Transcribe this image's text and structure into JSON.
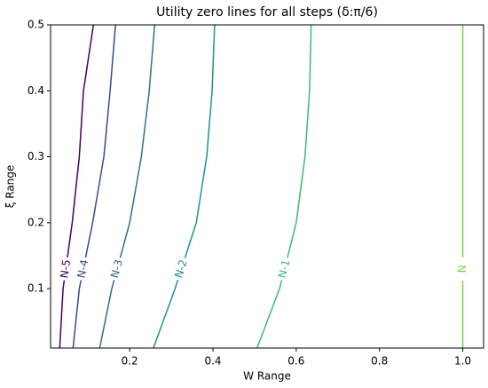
{
  "chart_data": {
    "type": "line",
    "title": "Utility zero lines for all steps (δ:π/6)",
    "x_label": "W Range",
    "y_label": "ξ Range",
    "xlim": [
      0.01,
      1.05
    ],
    "ylim": [
      0.01,
      0.5
    ],
    "xticks": [
      0.2,
      0.4,
      0.6,
      {
        "value": 0.8,
        "label": "0.8"
      },
      {
        "value": 1.0,
        "label": "1.0"
      }
    ],
    "yticks": [
      0.1,
      0.2,
      0.3,
      0.4,
      0.5
    ],
    "series": [
      {
        "name": "N-5",
        "color": "#440154",
        "x": [
          0.032,
          0.04,
          0.062,
          0.079,
          0.089,
          0.113
        ],
        "values": [
          0.01,
          0.1,
          0.2,
          0.3,
          0.4,
          0.5
        ]
      },
      {
        "name": "N-4",
        "color": "#3e4a89",
        "x": [
          0.064,
          0.079,
          0.111,
          0.138,
          0.153,
          0.166
        ],
        "values": [
          0.01,
          0.1,
          0.2,
          0.3,
          0.4,
          0.5
        ]
      },
      {
        "name": "N-3",
        "color": "#2c718e",
        "x": [
          0.128,
          0.157,
          0.2,
          0.228,
          0.247,
          0.26
        ],
        "values": [
          0.01,
          0.1,
          0.2,
          0.3,
          0.4,
          0.5
        ]
      },
      {
        "name": "N-2",
        "color": "#21918c",
        "x": [
          0.257,
          0.309,
          0.36,
          0.385,
          0.398,
          0.404
        ],
        "values": [
          0.01,
          0.1,
          0.2,
          0.3,
          0.4,
          0.5
        ]
      },
      {
        "name": "N-1",
        "color": "#3bbb75",
        "x": [
          0.506,
          0.56,
          0.6,
          0.621,
          0.632,
          0.636
        ],
        "values": [
          0.01,
          0.1,
          0.2,
          0.3,
          0.4,
          0.5
        ]
      },
      {
        "name": "N",
        "color": "#7ad151",
        "x": [
          1.0,
          1.0,
          1.0,
          1.0,
          1.0,
          1.0
        ],
        "values": [
          0.01,
          0.1,
          0.2,
          0.3,
          0.4,
          0.5
        ]
      }
    ]
  }
}
